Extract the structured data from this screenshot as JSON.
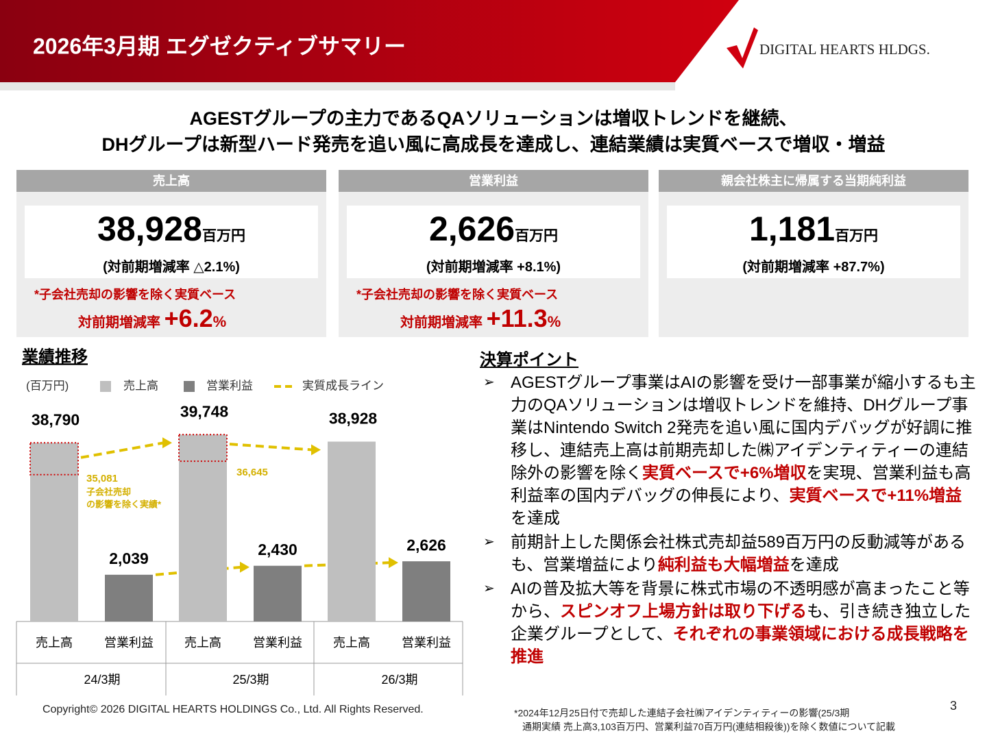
{
  "header": {
    "title": "2026年3月期 エグゼクティブサマリー",
    "logo": "DIGITAL HEARTS HLDGS."
  },
  "headline": [
    "AGESTグループの主力であるQAソリューションは増収トレンドを継続、",
    "DHグループは新型ハード発売を追い風に高成長を達成し、連結業績は実質ベースで増収・増益"
  ],
  "kpis": [
    {
      "label": "売上高",
      "value": "38,928",
      "unit": "百万円",
      "change": "(対前期増減率 △2.1%)",
      "note": "*子会社売却の影響を除く実質ベース",
      "adjusted_label": "対前期増減率",
      "adjusted_value": "+6.2",
      "adjusted_unit": "%"
    },
    {
      "label": "営業利益",
      "value": "2,626",
      "unit": "百万円",
      "change": "(対前期増減率 +8.1%)",
      "note": "*子会社売却の影響を除く実質ベース",
      "adjusted_label": "対前期増減率",
      "adjusted_value": "+11.3",
      "adjusted_unit": "%"
    },
    {
      "label": "親会社株主に帰属する当期純利益",
      "value": "1,181",
      "unit": "百万円",
      "change": "(対前期増減率 +87.7%)"
    }
  ],
  "chart_data": {
    "type": "bar",
    "title": "業績推移",
    "unit_label": "(百万円)",
    "categories": [
      "24/3期",
      "25/3期",
      "26/3期"
    ],
    "series": [
      {
        "name": "売上高",
        "color": "#bfbfbf",
        "values": [
          38790,
          39748,
          38928
        ],
        "value_labels": [
          "38,790",
          "39,748",
          "38,928"
        ]
      },
      {
        "name": "営業利益",
        "color": "#7f7f7f",
        "axis": "y2",
        "values": [
          2039,
          2430,
          2626
        ],
        "value_labels": [
          "2,039",
          "2,430",
          "2,626"
        ]
      }
    ],
    "growth_line": {
      "name": "実質成長ライン",
      "color": "#e0c000",
      "values": [
        35081,
        36645,
        null
      ],
      "value_labels": [
        "35,081",
        "36,645",
        null
      ],
      "note": [
        "子会社売却",
        "の影響を除く実績*"
      ]
    },
    "ylim": [
      18000,
      42000
    ],
    "y2lim": [
      0,
      9000
    ]
  },
  "points": {
    "title": "決算ポイント",
    "items": [
      {
        "runs": [
          {
            "text": "AGESTグループ事業はAIの影響を受け一部事業が縮小するも主力のQAソリューションは増収トレンドを維持、DHグループ事業はNintendo Switch 2発売を追い風に国内デバッグが好調に推移し、連結売上高は前期売却した㈱アイデンティティーの連結除外の影響を除く"
          },
          {
            "text": "実質ベースで+6%増収",
            "emphasis": true
          },
          {
            "text": "を実現、営業利益も高利益率の国内デバッグの伸長により、"
          },
          {
            "text": "実質ベースで+11%増益",
            "emphasis": true
          },
          {
            "text": "を達成"
          }
        ]
      },
      {
        "runs": [
          {
            "text": "前期計上した関係会社株式売却益589百万円の反動減等があるも、営業増益により"
          },
          {
            "text": "純利益も大幅増益",
            "emphasis": true
          },
          {
            "text": "を達成"
          }
        ]
      },
      {
        "runs": [
          {
            "text": "AIの普及拡大等を背景に株式市場の不透明感が高まったこと等から、"
          },
          {
            "text": "スピンオフ上場方針は取り下げる",
            "emphasis": true
          },
          {
            "text": "も、引き続き独立した企業グループとして、"
          },
          {
            "text": "それぞれの事業領域における成長戦略を推進",
            "emphasis": true
          }
        ]
      }
    ]
  },
  "footer": {
    "copyright": "Copyright© 2026  DIGITAL HEARTS HOLDINGS Co., Ltd. All Rights Reserved.",
    "page": "3",
    "footnote": [
      "*2024年12月25日付で売却した連結子会社㈱アイデンティティーの影響(25/3期",
      "通期実績  売上高3,103百万円、営業利益70百万円(連結相殺後))を除く数値について記載"
    ]
  }
}
